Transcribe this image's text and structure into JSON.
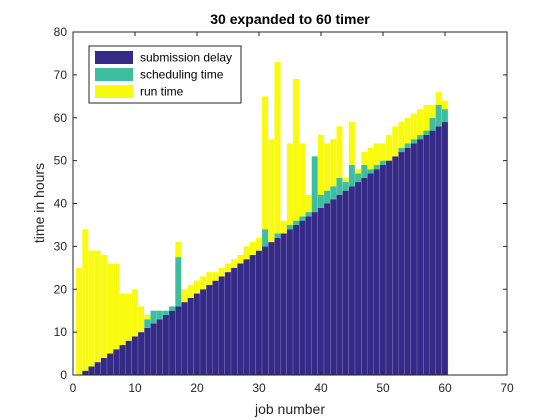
{
  "chart_data": {
    "type": "bar",
    "stacked": true,
    "title": "30 expanded to 60 timer",
    "xlabel": "job number",
    "ylabel": "time in hours",
    "xlim": [
      0,
      70
    ],
    "ylim": [
      0,
      80
    ],
    "xticks": [
      "0",
      "10",
      "20",
      "30",
      "40",
      "50",
      "60",
      "70"
    ],
    "yticks": [
      "0",
      "10",
      "20",
      "30",
      "40",
      "50",
      "60",
      "70",
      "80"
    ],
    "grid": false,
    "legend_position": "top-left",
    "x": [
      1,
      2,
      3,
      4,
      5,
      6,
      7,
      8,
      9,
      10,
      11,
      12,
      13,
      14,
      15,
      16,
      17,
      18,
      19,
      20,
      21,
      22,
      23,
      24,
      25,
      26,
      27,
      28,
      29,
      30,
      31,
      32,
      33,
      34,
      35,
      36,
      37,
      38,
      39,
      40,
      41,
      42,
      43,
      44,
      45,
      46,
      47,
      48,
      49,
      50,
      51,
      52,
      53,
      54,
      55,
      56,
      57,
      58,
      59,
      60
    ],
    "series": [
      {
        "name": "submission delay",
        "color": "#352a87",
        "values": [
          0,
          1,
          2,
          3,
          4,
          5,
          6,
          7,
          8,
          9,
          10,
          11,
          12,
          13,
          14,
          15,
          16,
          17,
          18,
          19,
          20,
          21,
          22,
          23,
          24,
          25,
          26,
          27,
          28,
          29,
          30,
          31,
          32,
          33,
          34,
          35,
          36,
          37,
          38,
          39,
          40,
          41,
          42,
          43,
          44,
          45,
          46,
          47,
          48,
          49,
          50,
          51,
          52,
          53,
          54,
          55,
          56,
          57,
          58,
          59
        ]
      },
      {
        "name": "scheduling time",
        "color": "#3dbea0",
        "values": [
          0,
          0,
          0,
          0,
          0,
          0,
          0,
          0,
          0,
          0,
          0,
          2,
          3,
          2,
          1,
          1,
          11.5,
          0,
          0,
          0,
          0,
          0,
          0,
          0,
          0,
          0,
          0,
          0,
          0,
          0,
          4,
          0,
          1,
          0,
          1,
          1,
          1,
          1,
          13,
          3,
          3,
          3,
          4,
          2,
          5,
          2,
          3,
          1,
          1,
          1,
          0,
          0,
          1,
          1,
          1,
          1,
          1,
          3,
          5,
          3
        ]
      },
      {
        "name": "run time",
        "color": "#f9fb0e",
        "values": [
          25,
          33,
          27,
          26,
          24,
          21,
          20,
          12,
          11,
          11,
          6,
          1,
          0,
          0,
          0,
          0,
          3.5,
          3,
          3,
          3,
          3,
          3,
          2,
          2,
          2,
          2,
          2,
          3,
          3,
          3,
          31,
          24,
          40,
          3,
          19,
          33,
          17,
          4,
          0,
          14,
          11,
          11,
          12,
          1,
          10,
          1,
          3,
          5,
          5,
          4,
          6,
          7,
          6,
          6,
          6,
          6,
          6,
          3,
          3,
          2
        ]
      }
    ]
  }
}
